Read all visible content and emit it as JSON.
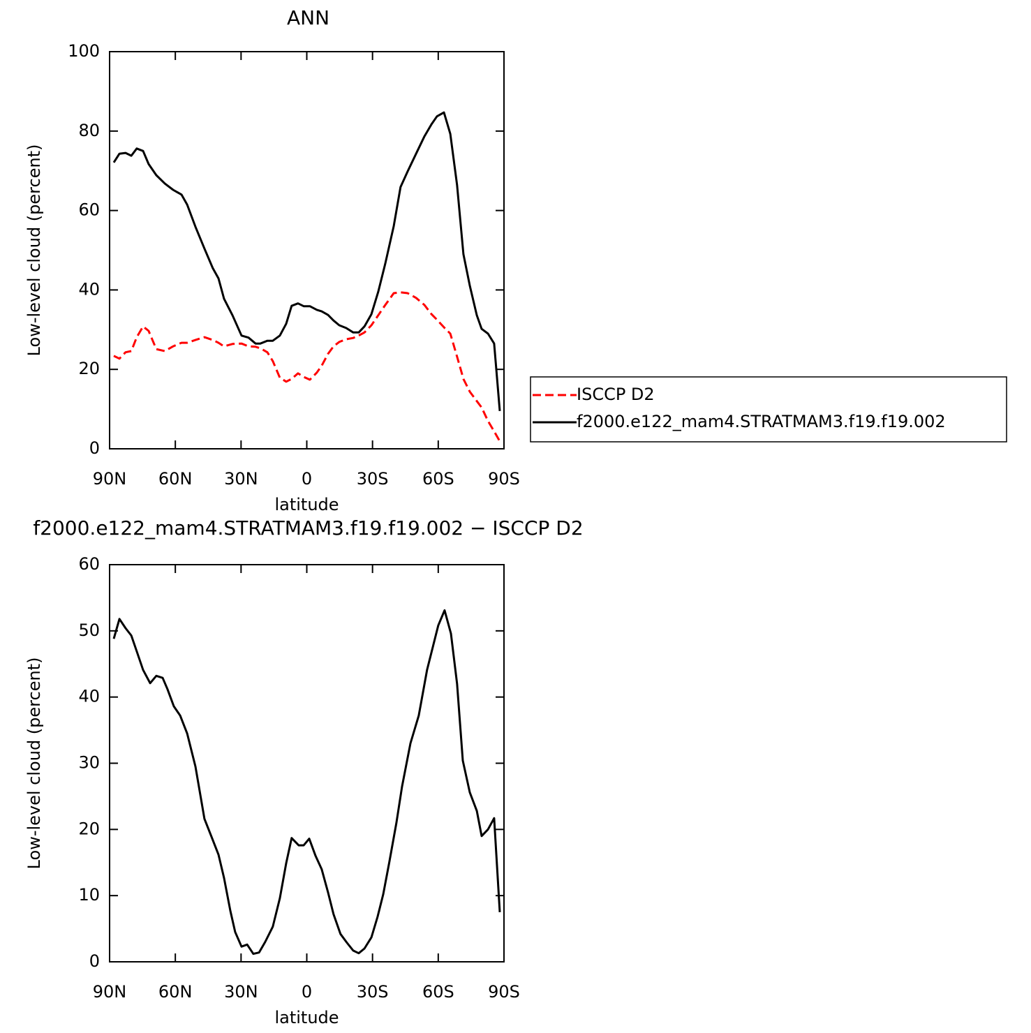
{
  "chart_data": [
    {
      "type": "line",
      "title": "ANN",
      "xlabel": "latitude",
      "ylabel": "Low-level cloud (percent)",
      "xlim": [
        90,
        -90
      ],
      "xticks": [
        {
          "value": 90,
          "label": "90N"
        },
        {
          "value": 60,
          "label": "60N"
        },
        {
          "value": 30,
          "label": "30N"
        },
        0,
        {
          "value": -30,
          "label": "30S"
        },
        {
          "value": -60,
          "label": "60S"
        },
        {
          "value": -90,
          "label": "90S"
        }
      ],
      "ylim": [
        0,
        100
      ],
      "yticks": [
        0,
        20,
        40,
        60,
        80,
        100
      ],
      "legend": "right",
      "x": [
        88.1,
        85.5,
        82.7,
        80.1,
        77.6,
        74.7,
        72.2,
        68.7,
        64.8,
        61.0,
        57.2,
        54.6,
        50.8,
        46.7,
        42.9,
        40.3,
        37.8,
        33.9,
        29.8,
        26.6,
        23.4,
        21.2,
        18.0,
        15.5,
        12.3,
        9.4,
        6.9,
        4.0,
        1.4,
        -1.4,
        -4.6,
        -6.8,
        -9.7,
        -12.2,
        -14.8,
        -18.0,
        -21.2,
        -23.7,
        -26.3,
        -29.5,
        -32.6,
        -35.8,
        -39.7,
        -42.8,
        -46.0,
        -49.9,
        -53.7,
        -56.9,
        -59.4,
        -62.6,
        -65.5,
        -68.6,
        -71.5,
        -74.4,
        -77.6,
        -79.8,
        -82.7,
        -85.5,
        -88.1
      ],
      "series": [
        {
          "name": "ISCCP D2",
          "color": "#ff0000",
          "dashed": true,
          "values": [
            23.4,
            22.7,
            24.3,
            24.6,
            28.1,
            30.8,
            29.7,
            25.1,
            24.6,
            25.8,
            26.7,
            26.7,
            27.4,
            28.1,
            27.4,
            26.7,
            25.8,
            26.4,
            26.5,
            25.8,
            25.7,
            25.3,
            24.3,
            22.1,
            17.9,
            16.9,
            17.6,
            19.0,
            18.1,
            17.4,
            19.2,
            20.9,
            23.9,
            25.8,
            26.9,
            27.6,
            27.9,
            28.5,
            29.3,
            31.1,
            33.6,
            36.2,
            39.2,
            39.4,
            39.2,
            38.0,
            36.2,
            33.9,
            32.5,
            30.6,
            29.0,
            23.2,
            17.6,
            14.4,
            12.0,
            10.4,
            7.0,
            4.4,
            1.9
          ]
        },
        {
          "name": "f2000.e122_mam4.STRATMAM3.f19.f19.002",
          "color": "#000000",
          "dashed": false,
          "values": [
            72.1,
            74.3,
            74.5,
            73.8,
            75.6,
            75.0,
            71.7,
            68.9,
            66.8,
            65.2,
            64.0,
            61.5,
            55.9,
            50.4,
            45.5,
            42.9,
            37.8,
            33.6,
            28.5,
            28.0,
            26.5,
            26.5,
            27.2,
            27.2,
            28.5,
            31.5,
            36.0,
            36.6,
            35.9,
            35.9,
            35.0,
            34.6,
            33.7,
            32.3,
            31.1,
            30.4,
            29.3,
            29.3,
            30.8,
            33.9,
            39.5,
            46.6,
            56.1,
            65.9,
            69.8,
            74.3,
            78.7,
            81.7,
            83.7,
            84.7,
            79.3,
            66.4,
            49.0,
            41.1,
            33.6,
            30.2,
            29.0,
            26.5,
            9.5
          ]
        }
      ]
    },
    {
      "type": "line",
      "title": "f2000.e122_mam4.STRATMAM3.f19.f19.002 − ISCCP D2",
      "xlabel": "latitude",
      "ylabel": "Low-level cloud (percent)",
      "xlim": [
        90,
        -90
      ],
      "xticks": [
        {
          "value": 90,
          "label": "90N"
        },
        {
          "value": 60,
          "label": "60N"
        },
        {
          "value": 30,
          "label": "30N"
        },
        0,
        {
          "value": -30,
          "label": "30S"
        },
        {
          "value": -60,
          "label": "60S"
        },
        {
          "value": -90,
          "label": "90S"
        }
      ],
      "ylim": [
        0,
        60
      ],
      "yticks": [
        0,
        10,
        20,
        30,
        40,
        50,
        60
      ],
      "x": [
        88.1,
        85.5,
        82.7,
        80.1,
        77.6,
        74.7,
        71.5,
        68.7,
        65.8,
        63.6,
        60.7,
        57.8,
        54.6,
        50.8,
        46.7,
        43.5,
        40.3,
        37.8,
        34.9,
        32.7,
        29.8,
        27.2,
        24.4,
        21.8,
        19.0,
        15.5,
        12.3,
        9.4,
        6.9,
        3.7,
        1.4,
        -1.1,
        -4.0,
        -6.8,
        -9.7,
        -12.2,
        -15.4,
        -18.3,
        -21.2,
        -23.7,
        -26.3,
        -29.5,
        -32.3,
        -34.9,
        -37.7,
        -40.9,
        -43.5,
        -47.3,
        -51.1,
        -54.9,
        -60.0,
        -62.9,
        -65.8,
        -68.6,
        -71.2,
        -74.4,
        -77.6,
        -79.8,
        -82.7,
        -85.5,
        -88.1
      ],
      "series": [
        {
          "color": "#000000",
          "dashed": false,
          "values": [
            48.8,
            51.8,
            50.4,
            49.3,
            46.9,
            44.1,
            42.1,
            43.2,
            42.9,
            41.2,
            38.6,
            37.2,
            34.5,
            29.5,
            21.6,
            18.9,
            16.2,
            12.7,
            7.7,
            4.5,
            2.3,
            2.6,
            1.2,
            1.4,
            3.0,
            5.3,
            9.6,
            14.9,
            18.7,
            17.6,
            17.6,
            18.6,
            16.0,
            14.0,
            10.5,
            7.2,
            4.2,
            2.9,
            1.7,
            1.3,
            2.0,
            3.7,
            6.8,
            10.2,
            15.1,
            21.0,
            26.5,
            33.0,
            37.2,
            44.1,
            50.8,
            53.1,
            49.6,
            42.0,
            30.4,
            25.6,
            22.8,
            19.0,
            20.0,
            21.7,
            7.5
          ]
        }
      ]
    }
  ]
}
